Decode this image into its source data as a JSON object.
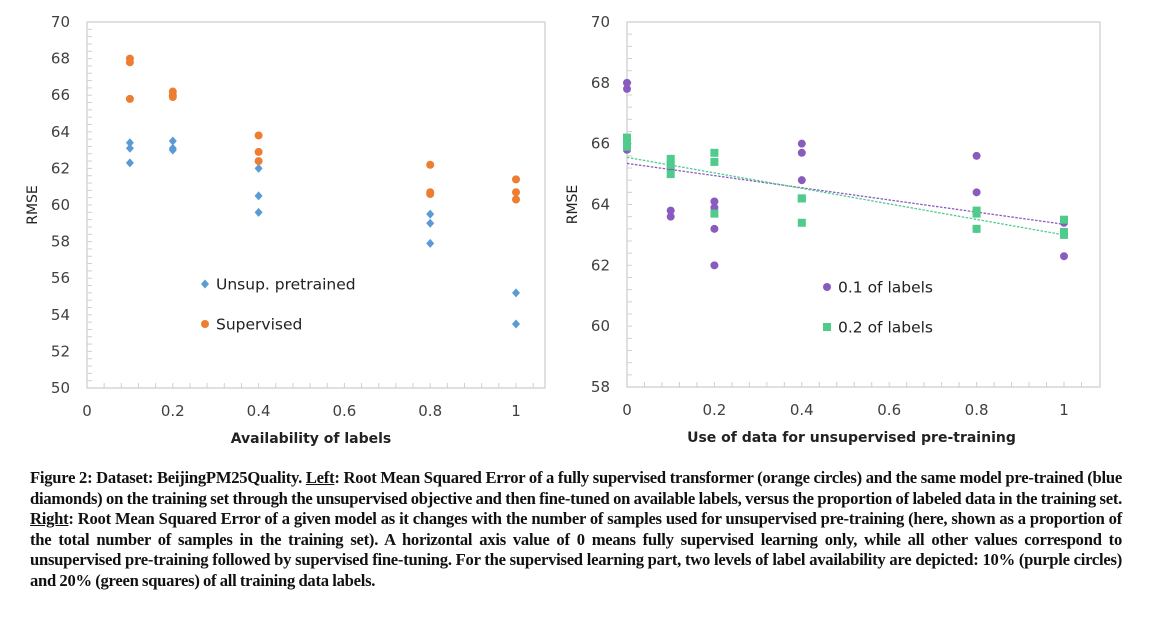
{
  "chart_data": [
    {
      "type": "scatter",
      "title": "",
      "xlabel": "Availability of labels",
      "ylabel": "RMSE",
      "xlim": [
        0,
        1.07
      ],
      "ylim": [
        50,
        70
      ],
      "xticks": [
        "0",
        "0.2",
        "0.4",
        "0.6",
        "0.8",
        "1"
      ],
      "yticks": [
        "50",
        "52",
        "54",
        "56",
        "58",
        "60",
        "62",
        "64",
        "66",
        "68",
        "70"
      ],
      "grid": false,
      "legend": "center",
      "series": [
        {
          "name": "Unsup. pretrained",
          "marker": "diamond",
          "color": "#5B9BD5",
          "points": [
            [
              0.1,
              63.4
            ],
            [
              0.1,
              63.1
            ],
            [
              0.1,
              62.3
            ],
            [
              0.2,
              63.5
            ],
            [
              0.2,
              63.1
            ],
            [
              0.2,
              63.0
            ],
            [
              0.4,
              62.0
            ],
            [
              0.4,
              60.5
            ],
            [
              0.4,
              59.6
            ],
            [
              0.8,
              59.5
            ],
            [
              0.8,
              59.0
            ],
            [
              0.8,
              57.9
            ],
            [
              1,
              55.2
            ],
            [
              1,
              53.5
            ]
          ]
        },
        {
          "name": "Supervised",
          "marker": "circle",
          "color": "#ED7D31",
          "points": [
            [
              0.1,
              68.0
            ],
            [
              0.1,
              67.8
            ],
            [
              0.1,
              65.8
            ],
            [
              0.2,
              66.2
            ],
            [
              0.2,
              66.0
            ],
            [
              0.2,
              65.9
            ],
            [
              0.4,
              63.8
            ],
            [
              0.4,
              62.9
            ],
            [
              0.4,
              62.4
            ],
            [
              0.8,
              62.2
            ],
            [
              0.8,
              60.7
            ],
            [
              0.8,
              60.6
            ],
            [
              1,
              61.4
            ],
            [
              1,
              60.7
            ],
            [
              1,
              60.3
            ]
          ]
        }
      ]
    },
    {
      "type": "scatter",
      "title": "",
      "xlabel": "Use of data for unsupervised pre-training",
      "ylabel": "RMSE",
      "xlim": [
        0,
        1.08
      ],
      "ylim": [
        58,
        70
      ],
      "xticks": [
        "0",
        "0.2",
        "0.4",
        "0.6",
        "0.8",
        "1"
      ],
      "yticks": [
        "58",
        "60",
        "62",
        "64",
        "66",
        "68",
        "70"
      ],
      "grid": false,
      "legend": "bottom-center",
      "series": [
        {
          "name": "0.1 of labels",
          "marker": "circle",
          "color": "#8A5BBE",
          "points": [
            [
              0,
              68.0
            ],
            [
              0,
              67.8
            ],
            [
              0,
              65.8
            ],
            [
              0.1,
              65.2
            ],
            [
              0.1,
              63.8
            ],
            [
              0.1,
              63.6
            ],
            [
              0.2,
              64.1
            ],
            [
              0.2,
              63.9
            ],
            [
              0.2,
              63.2
            ],
            [
              0.2,
              62.0
            ],
            [
              0.4,
              66.0
            ],
            [
              0.4,
              65.7
            ],
            [
              0.4,
              64.8
            ],
            [
              0.8,
              65.6
            ],
            [
              0.8,
              64.4
            ],
            [
              0.8,
              63.2
            ],
            [
              1,
              63.4
            ],
            [
              1,
              63.1
            ],
            [
              1,
              62.3
            ]
          ],
          "trendline": [
            [
              0,
              65.35
            ],
            [
              1,
              63.35
            ]
          ]
        },
        {
          "name": "0.2 of labels",
          "marker": "square",
          "color": "#4FCB8C",
          "points": [
            [
              0,
              66.2
            ],
            [
              0,
              66.1
            ],
            [
              0,
              65.9
            ],
            [
              0.1,
              65.5
            ],
            [
              0.1,
              65.3
            ],
            [
              0.1,
              65.0
            ],
            [
              0.2,
              65.7
            ],
            [
              0.2,
              65.4
            ],
            [
              0.2,
              63.7
            ],
            [
              0.4,
              64.2
            ],
            [
              0.4,
              64.2
            ],
            [
              0.4,
              63.4
            ],
            [
              0.8,
              63.8
            ],
            [
              0.8,
              63.7
            ],
            [
              0.8,
              63.2
            ],
            [
              1,
              63.5
            ],
            [
              1,
              63.1
            ],
            [
              1,
              63.0
            ]
          ],
          "trendline": [
            [
              0,
              65.55
            ],
            [
              1,
              63.0
            ]
          ]
        }
      ]
    }
  ],
  "caption": {
    "lead": "Figure 2: Dataset: BeijingPM25Quality. ",
    "left_label": "Left",
    "left_text": ": Root Mean Squared Error of a fully supervised transformer (orange circles) and the same model pre-trained (blue diamonds) on the training set through the unsupervised objective and then fine-tuned on available labels, versus the proportion of labeled data in the training set. ",
    "right_label": "Right",
    "right_text": ": Root Mean Squared Error of a given model as it changes with the number of samples used for unsupervised pre-training (here, shown as a proportion of the total number of samples in the training set). A horizontal axis value of 0 means fully supervised learning only, while all other values correspond to unsupervised pre-training followed by supervised fine-tuning. For the supervised learning part, two levels of label availability are depicted: 10% (purple circles) and 20% (green squares) of all training data labels."
  }
}
